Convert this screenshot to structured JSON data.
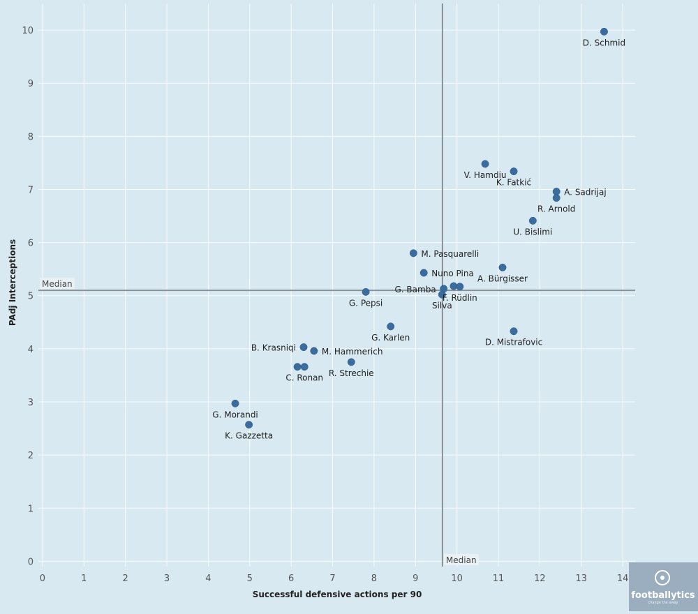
{
  "chart_data": {
    "type": "scatter",
    "xlabel": "Successful defensive actions per 90",
    "ylabel": "PAdj Interceptions",
    "xlim": [
      -0.1,
      14.3
    ],
    "ylim": [
      -0.1,
      10.5
    ],
    "x_ticks": [
      "0",
      "1",
      "2",
      "3",
      "4",
      "5",
      "6",
      "7",
      "8",
      "9",
      "10",
      "11",
      "12",
      "13",
      "14"
    ],
    "y_ticks": [
      "0",
      "1",
      "2",
      "3",
      "4",
      "5",
      "6",
      "7",
      "8",
      "9",
      "10"
    ],
    "grid": true,
    "medians": {
      "x": 9.65,
      "y": 5.1,
      "x_label": "Median",
      "y_label": "Median"
    },
    "point_color": "#3a6c9e",
    "points": [
      {
        "x": 13.55,
        "y": 9.97,
        "label": "D. Schmid",
        "pos": "below"
      },
      {
        "x": 10.68,
        "y": 7.48,
        "label": "V. Hamdiu",
        "pos": "below"
      },
      {
        "x": 11.37,
        "y": 7.34,
        "label": "K. Fatkić",
        "pos": "below"
      },
      {
        "x": 12.4,
        "y": 6.96,
        "label": "A. Sadrijaj",
        "pos": "right"
      },
      {
        "x": 12.4,
        "y": 6.84,
        "label": "R. Arnold",
        "pos": "below"
      },
      {
        "x": 11.83,
        "y": 6.41,
        "label": "U. Bislimi",
        "pos": "below"
      },
      {
        "x": 8.95,
        "y": 5.8,
        "label": "M. Pasquarelli",
        "pos": "right"
      },
      {
        "x": 9.2,
        "y": 5.43,
        "label": "Nuno Pina",
        "pos": "right"
      },
      {
        "x": 11.1,
        "y": 5.53,
        "label": "A. Bürgisser",
        "pos": "below"
      },
      {
        "x": 9.92,
        "y": 5.18,
        "label": "",
        "pos": "none"
      },
      {
        "x": 10.07,
        "y": 5.17,
        "label": "F. Rüdlin",
        "pos": "below"
      },
      {
        "x": 9.68,
        "y": 5.13,
        "label": "G. Bamba",
        "pos": "left"
      },
      {
        "x": 9.64,
        "y": 5.02,
        "label": "Silva",
        "pos": "below"
      },
      {
        "x": 7.8,
        "y": 5.07,
        "label": "G. Pepsi",
        "pos": "below"
      },
      {
        "x": 8.4,
        "y": 4.42,
        "label": "G. Karlen",
        "pos": "below"
      },
      {
        "x": 11.37,
        "y": 4.33,
        "label": "D. Mistrafovic",
        "pos": "below"
      },
      {
        "x": 6.3,
        "y": 4.03,
        "label": "B. Krasniqi",
        "pos": "left"
      },
      {
        "x": 6.55,
        "y": 3.96,
        "label": "M. Hammerich",
        "pos": "right"
      },
      {
        "x": 7.45,
        "y": 3.75,
        "label": "R. Strechie",
        "pos": "below"
      },
      {
        "x": 6.15,
        "y": 3.66,
        "label": "",
        "pos": "none"
      },
      {
        "x": 6.32,
        "y": 3.66,
        "label": "C. Ronan",
        "pos": "below"
      },
      {
        "x": 4.65,
        "y": 2.97,
        "label": "G. Morandi",
        "pos": "below"
      },
      {
        "x": 4.98,
        "y": 2.57,
        "label": "K. Gazzetta",
        "pos": "below"
      }
    ]
  },
  "logo": {
    "name": "footballytics",
    "tagline": "change the away"
  }
}
